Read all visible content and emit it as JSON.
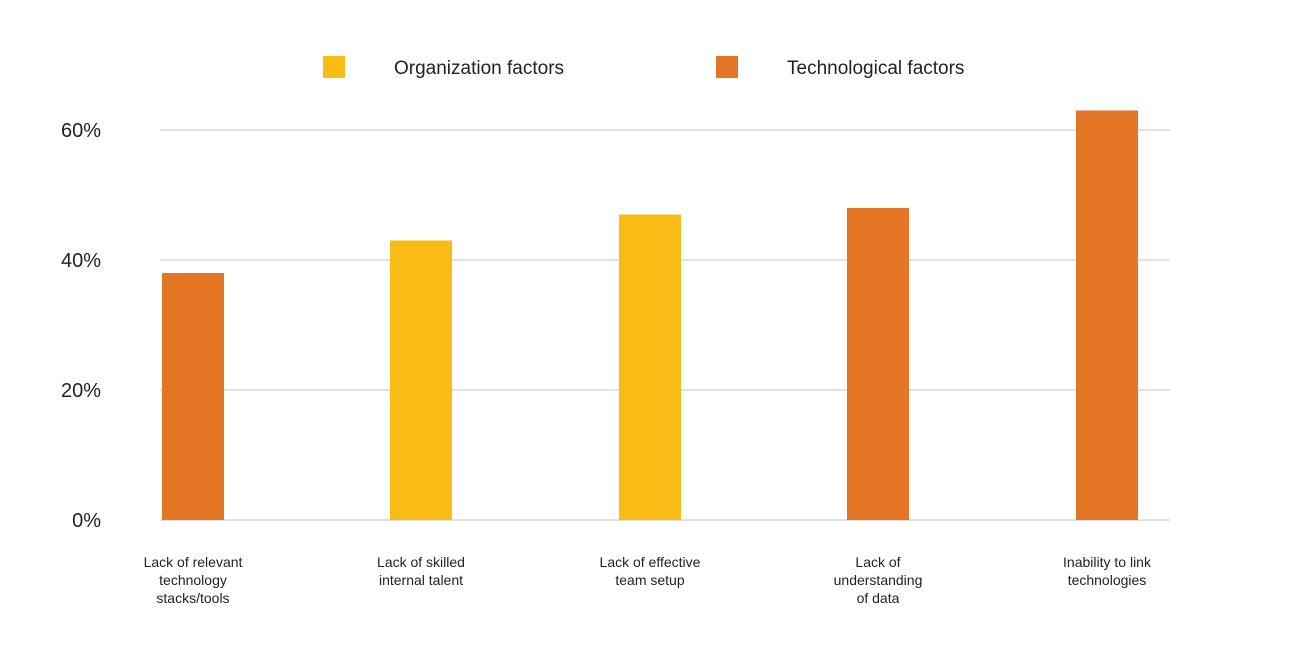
{
  "chart_data": {
    "type": "bar",
    "title": "",
    "xlabel": "",
    "ylabel": "",
    "ylim": [
      0,
      60
    ],
    "yticks": [
      "0%",
      "20%",
      "40%",
      "60%"
    ],
    "ytick_values": [
      0,
      20,
      40,
      60
    ],
    "grid": true,
    "legend_position": "top-center",
    "legend": [
      {
        "name": "Organization factors",
        "color": "#F9BC15"
      },
      {
        "name": "Technological factors",
        "color": "#E37525"
      }
    ],
    "categories": [
      [
        "Lack of relevant",
        "technology",
        "stacks/tools"
      ],
      [
        "Lack of skilled",
        "internal talent"
      ],
      [
        "Lack of effective",
        "team setup"
      ],
      [
        "Lack of",
        "understanding",
        "of data"
      ],
      [
        "Inability to link",
        "technologies"
      ]
    ],
    "values": [
      38,
      43,
      47,
      48,
      63
    ],
    "groups": [
      "Technological factors",
      "Organization factors",
      "Organization factors",
      "Technological factors",
      "Technological factors"
    ]
  }
}
